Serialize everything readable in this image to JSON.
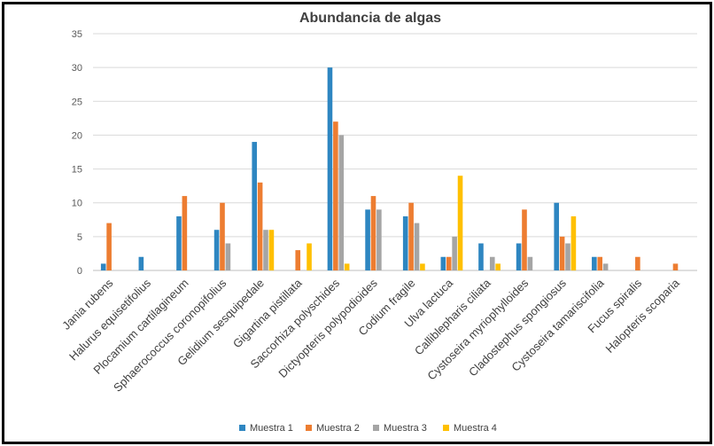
{
  "chart_data": {
    "type": "bar",
    "title": "Abundancia de algas",
    "xlabel": "",
    "ylabel": "",
    "ylim": [
      0,
      35
    ],
    "yticks": [
      0,
      5,
      10,
      15,
      20,
      25,
      30,
      35
    ],
    "grid": true,
    "legend_position": "bottom",
    "categories": [
      "Jania rubens",
      "Halurus equisetifolius",
      "Plocamium cartilagineum",
      "Sphaerococcus coronopifolius",
      "Gelidium sesquipedale",
      "Gigartina pistillata",
      "Saccorhiza polyschides",
      "Dictyopteris polypodioides",
      "Codium fragile",
      "Ulva lactuca",
      "Calliblepharis ciliata",
      "Cystoseira myriophylloides",
      "Cladostephus spongiosus",
      "Cystoseira tamariscifolia",
      "Fucus spiralis",
      "Halopteris scoparia"
    ],
    "series": [
      {
        "name": "Muestra 1",
        "color": "#2E86C1",
        "values": [
          1,
          2,
          8,
          6,
          19,
          0,
          30,
          9,
          8,
          2,
          4,
          4,
          10,
          2,
          0,
          0
        ]
      },
      {
        "name": "Muestra 2",
        "color": "#ED7D31",
        "values": [
          7,
          0,
          11,
          10,
          13,
          3,
          22,
          11,
          10,
          2,
          0,
          9,
          5,
          2,
          2,
          1
        ]
      },
      {
        "name": "Muestra 3",
        "color": "#A5A5A5",
        "values": [
          0,
          0,
          0,
          4,
          6,
          0,
          20,
          9,
          7,
          5,
          2,
          2,
          4,
          1,
          0,
          0
        ]
      },
      {
        "name": "Muestra 4",
        "color": "#FFC000",
        "values": [
          0,
          0,
          0,
          0,
          6,
          4,
          1,
          0,
          1,
          14,
          1,
          0,
          8,
          0,
          0,
          0
        ]
      }
    ]
  }
}
